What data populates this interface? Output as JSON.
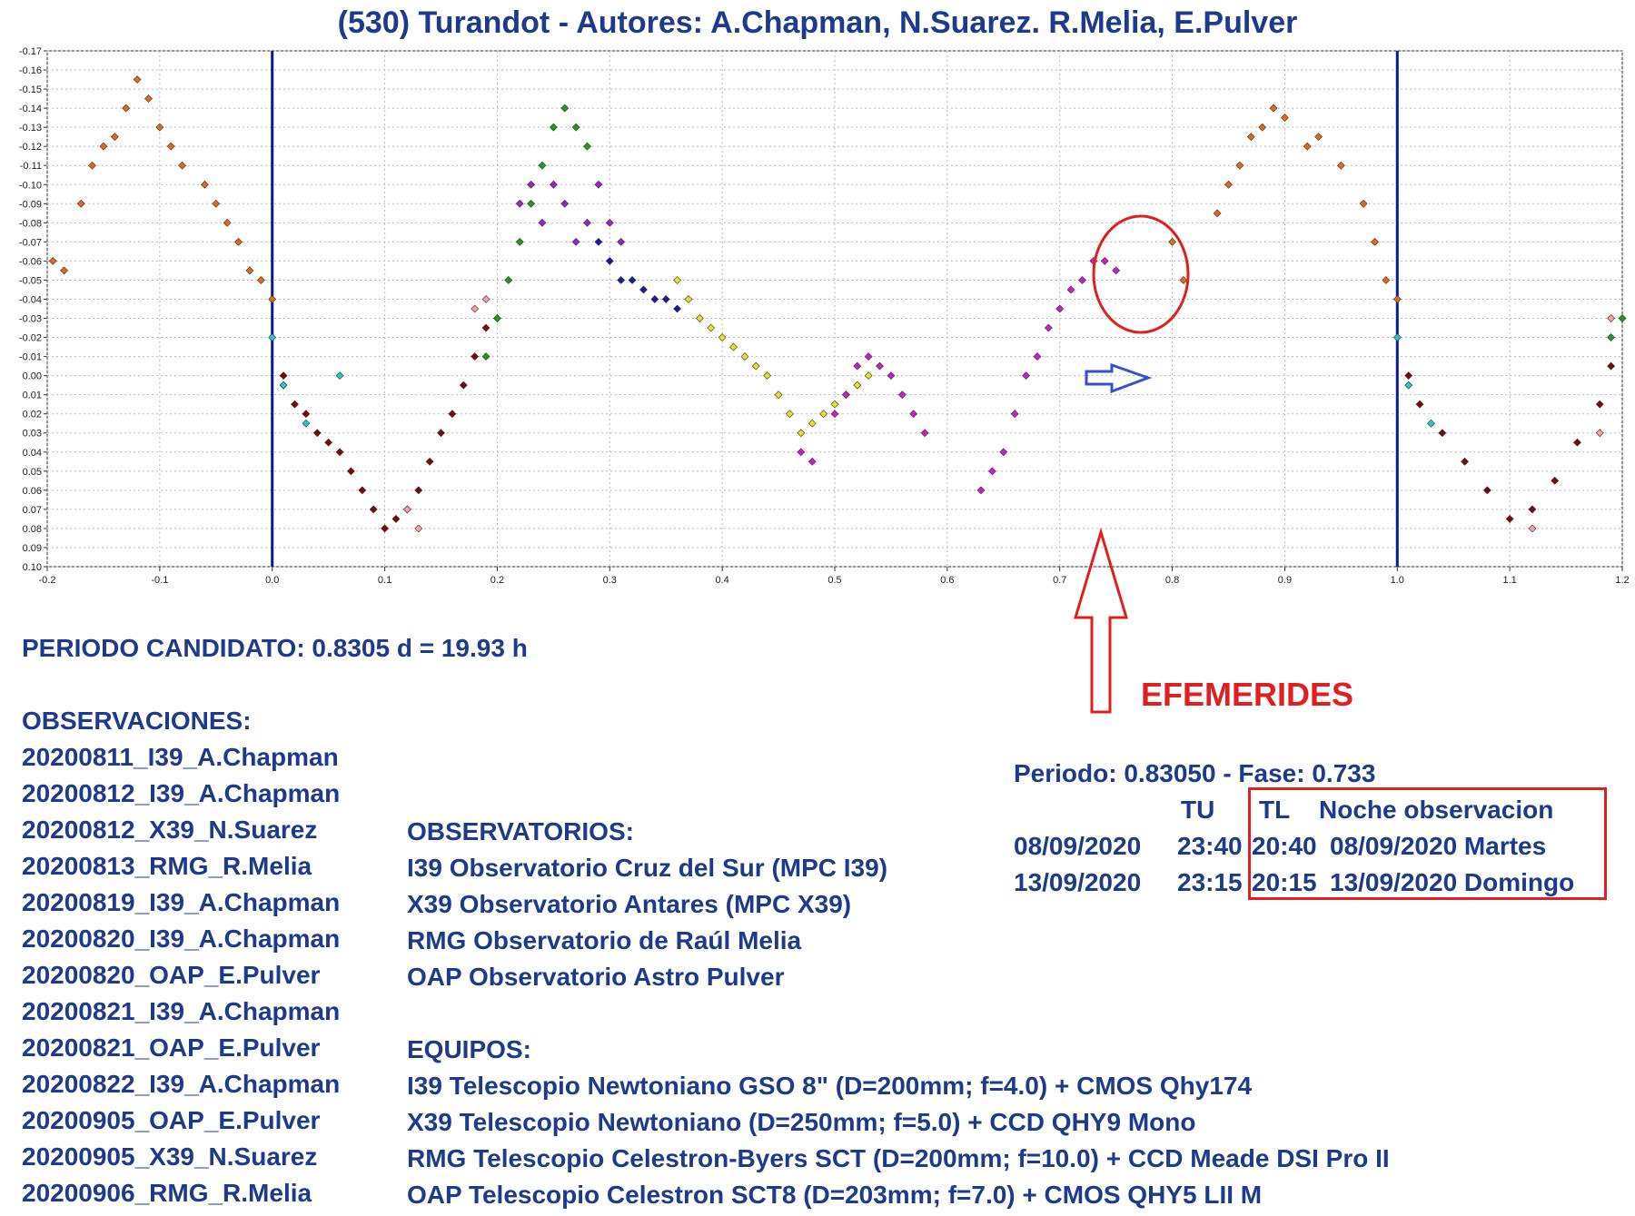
{
  "title": "(530) Turandot - Autores: A.Chapman, N.Suarez. R.Melia, E.Pulver",
  "period_text": "PERIODO CANDIDATO: 0.8305 d = 19.93 h",
  "observations": {
    "heading": "OBSERVACIONES:",
    "items": [
      "20200811_I39_A.Chapman",
      "20200812_I39_A.Chapman",
      "20200812_X39_N.Suarez",
      "20200813_RMG_R.Melia",
      "20200819_I39_A.Chapman",
      "20200820_I39_A.Chapman",
      "20200820_OAP_E.Pulver",
      "20200821_I39_A.Chapman",
      "20200821_OAP_E.Pulver",
      "20200822_I39_A.Chapman",
      "20200905_OAP_E.Pulver",
      "20200905_X39_N.Suarez",
      "20200906_RMG_R.Melia"
    ]
  },
  "observatories": {
    "heading": "OBSERVATORIOS:",
    "items": [
      "I39 Observatorio Cruz del Sur (MPC I39)",
      "X39 Observatorio Antares (MPC X39)",
      "RMG Observatorio de Raúl Melia",
      "OAP Observatorio Astro Pulver"
    ]
  },
  "equipment": {
    "heading": "EQUIPOS:",
    "items": [
      "I39 Telescopio Newtoniano GSO 8\" (D=200mm; f=4.0) + CMOS Qhy174",
      "X39 Telescopio Newtoniano (D=250mm; f=5.0) + CCD QHY9 Mono",
      "RMG Telescopio Celestron-Byers SCT (D=200mm; f=10.0) + CCD Meade DSI Pro II",
      "OAP Telescopio Celestron SCT8 (D=203mm; f=7.0) + CMOS QHY5 LII M"
    ]
  },
  "ephemeris": {
    "label": "EFEMERIDES",
    "period_phase": "Periodo: 0.83050 - Fase: 0.733",
    "col_tu": "TU",
    "col_tl": "TL",
    "col_night": "Noche observacion",
    "rows": [
      {
        "date": "08/09/2020",
        "tu": "23:40",
        "tl": "20:40",
        "night": "08/09/2020 Martes"
      },
      {
        "date": "13/09/2020",
        "tu": "23:15",
        "tl": "20:15",
        "night": "13/09/2020 Domingo"
      }
    ]
  },
  "colors": {
    "title": "#1f3a8a",
    "annotation": "#e02020",
    "arrow_right": "#3a4fd0",
    "phase_lines": "#0b1b8c"
  },
  "chart_data": {
    "type": "scatter",
    "title": "(530) Turandot - Autores: A.Chapman, N.Suarez. R.Melia, E.Pulver",
    "xlabel": "",
    "ylabel": "",
    "xlim": [
      -0.2,
      1.2
    ],
    "ylim": [
      -0.17,
      0.1
    ],
    "y_inverted": true,
    "grid": true,
    "x_ticks": [
      "-0.2",
      "-0.1",
      "0.0",
      "0.1",
      "0.2",
      "0.3",
      "0.4",
      "0.5",
      "0.6",
      "0.7",
      "0.8",
      "0.9",
      "1.0",
      "1.1",
      "1.2"
    ],
    "y_ticks": [
      "-0.17",
      "-0.16",
      "-0.15",
      "-0.14",
      "-0.13",
      "-0.12",
      "-0.11",
      "-0.10",
      "-0.09",
      "-0.08",
      "-0.07",
      "-0.06",
      "-0.05",
      "-0.04",
      "-0.03",
      "-0.02",
      "-0.01",
      "0.00",
      "0.01",
      "0.02",
      "0.03",
      "0.04",
      "0.05",
      "0.06",
      "0.07",
      "0.08",
      "0.09",
      "0.10"
    ],
    "vertical_lines": [
      0.0,
      1.0
    ],
    "series": [
      {
        "color": "#e06a1a",
        "points": [
          [
            -0.195,
            -0.06
          ],
          [
            -0.185,
            -0.055
          ],
          [
            -0.17,
            -0.09
          ],
          [
            -0.16,
            -0.11
          ],
          [
            -0.15,
            -0.12
          ],
          [
            -0.14,
            -0.125
          ],
          [
            -0.13,
            -0.14
          ],
          [
            -0.12,
            -0.155
          ],
          [
            -0.11,
            -0.145
          ],
          [
            -0.1,
            -0.13
          ],
          [
            -0.09,
            -0.12
          ],
          [
            -0.08,
            -0.11
          ],
          [
            -0.06,
            -0.1
          ],
          [
            -0.05,
            -0.09
          ],
          [
            -0.04,
            -0.08
          ],
          [
            -0.03,
            -0.07
          ],
          [
            -0.02,
            -0.055
          ],
          [
            -0.01,
            -0.05
          ],
          [
            0.0,
            -0.04
          ],
          [
            0.84,
            -0.085
          ],
          [
            0.85,
            -0.1
          ],
          [
            0.86,
            -0.11
          ],
          [
            0.87,
            -0.125
          ],
          [
            0.88,
            -0.13
          ],
          [
            0.89,
            -0.14
          ],
          [
            0.9,
            -0.135
          ],
          [
            0.92,
            -0.12
          ],
          [
            0.93,
            -0.125
          ],
          [
            0.95,
            -0.11
          ],
          [
            0.97,
            -0.09
          ],
          [
            0.98,
            -0.07
          ],
          [
            0.99,
            -0.05
          ],
          [
            1.0,
            -0.04
          ],
          [
            0.8,
            -0.07
          ],
          [
            0.81,
            -0.05
          ]
        ]
      },
      {
        "color": "#7a0a0a",
        "points": [
          [
            0.01,
            0.0
          ],
          [
            0.02,
            0.015
          ],
          [
            0.03,
            0.02
          ],
          [
            0.04,
            0.03
          ],
          [
            0.05,
            0.035
          ],
          [
            0.06,
            0.04
          ],
          [
            0.07,
            0.05
          ],
          [
            0.08,
            0.06
          ],
          [
            0.09,
            0.07
          ],
          [
            0.1,
            0.08
          ],
          [
            0.11,
            0.075
          ],
          [
            0.12,
            0.07
          ],
          [
            0.13,
            0.06
          ],
          [
            0.14,
            0.045
          ],
          [
            0.15,
            0.03
          ],
          [
            0.16,
            0.02
          ],
          [
            0.17,
            0.005
          ],
          [
            0.18,
            -0.01
          ],
          [
            0.19,
            -0.025
          ],
          [
            1.01,
            0.0
          ],
          [
            1.02,
            0.015
          ],
          [
            1.04,
            0.03
          ],
          [
            1.06,
            0.045
          ],
          [
            1.08,
            0.06
          ],
          [
            1.1,
            0.075
          ],
          [
            1.12,
            0.07
          ],
          [
            1.14,
            0.055
          ],
          [
            1.16,
            0.035
          ],
          [
            1.18,
            0.015
          ],
          [
            1.19,
            -0.005
          ]
        ]
      },
      {
        "color": "#1f9a1f",
        "points": [
          [
            0.19,
            -0.01
          ],
          [
            0.2,
            -0.03
          ],
          [
            0.21,
            -0.05
          ],
          [
            0.22,
            -0.07
          ],
          [
            0.23,
            -0.09
          ],
          [
            0.24,
            -0.11
          ],
          [
            0.25,
            -0.13
          ],
          [
            0.26,
            -0.14
          ],
          [
            0.27,
            -0.13
          ],
          [
            0.28,
            -0.12
          ],
          [
            1.19,
            -0.02
          ],
          [
            1.2,
            -0.03
          ]
        ]
      },
      {
        "color": "#9b22c8",
        "points": [
          [
            0.22,
            -0.09
          ],
          [
            0.23,
            -0.1
          ],
          [
            0.24,
            -0.08
          ],
          [
            0.25,
            -0.1
          ],
          [
            0.26,
            -0.09
          ],
          [
            0.27,
            -0.07
          ],
          [
            0.28,
            -0.08
          ],
          [
            0.29,
            -0.1
          ],
          [
            0.3,
            -0.08
          ],
          [
            0.31,
            -0.07
          ]
        ]
      },
      {
        "color": "#1a1aa0",
        "points": [
          [
            0.29,
            -0.07
          ],
          [
            0.3,
            -0.06
          ],
          [
            0.31,
            -0.05
          ],
          [
            0.32,
            -0.05
          ],
          [
            0.33,
            -0.045
          ],
          [
            0.34,
            -0.04
          ],
          [
            0.35,
            -0.04
          ],
          [
            0.36,
            -0.035
          ]
        ]
      },
      {
        "color": "#e8e020",
        "points": [
          [
            0.36,
            -0.05
          ],
          [
            0.37,
            -0.04
          ],
          [
            0.38,
            -0.03
          ],
          [
            0.39,
            -0.025
          ],
          [
            0.4,
            -0.02
          ],
          [
            0.41,
            -0.015
          ],
          [
            0.42,
            -0.01
          ],
          [
            0.43,
            -0.005
          ],
          [
            0.44,
            0.0
          ],
          [
            0.45,
            0.01
          ],
          [
            0.46,
            0.02
          ],
          [
            0.47,
            0.03
          ],
          [
            0.48,
            0.025
          ],
          [
            0.49,
            0.02
          ],
          [
            0.5,
            0.015
          ],
          [
            0.51,
            0.01
          ],
          [
            0.52,
            0.005
          ],
          [
            0.53,
            0.0
          ]
        ]
      },
      {
        "color": "#c81ec8",
        "points": [
          [
            0.47,
            0.04
          ],
          [
            0.48,
            0.045
          ],
          [
            0.5,
            0.02
          ],
          [
            0.51,
            0.01
          ],
          [
            0.52,
            -0.005
          ],
          [
            0.53,
            -0.01
          ],
          [
            0.54,
            -0.005
          ],
          [
            0.55,
            0.0
          ],
          [
            0.56,
            0.01
          ],
          [
            0.57,
            0.02
          ],
          [
            0.58,
            0.03
          ],
          [
            0.63,
            0.06
          ],
          [
            0.64,
            0.05
          ],
          [
            0.65,
            0.04
          ],
          [
            0.66,
            0.02
          ],
          [
            0.67,
            0.0
          ],
          [
            0.68,
            -0.01
          ],
          [
            0.69,
            -0.025
          ],
          [
            0.7,
            -0.035
          ],
          [
            0.71,
            -0.045
          ],
          [
            0.72,
            -0.05
          ],
          [
            0.73,
            -0.06
          ],
          [
            0.74,
            -0.06
          ],
          [
            0.75,
            -0.055
          ]
        ]
      },
      {
        "color": "#23c8c8",
        "points": [
          [
            0.0,
            -0.02
          ],
          [
            0.01,
            0.005
          ],
          [
            0.03,
            0.025
          ],
          [
            0.06,
            0.0
          ],
          [
            1.0,
            -0.02
          ],
          [
            1.01,
            0.005
          ],
          [
            1.03,
            0.025
          ]
        ]
      },
      {
        "color": "#f2a3a3",
        "points": [
          [
            0.12,
            0.07
          ],
          [
            0.13,
            0.08
          ],
          [
            0.18,
            -0.035
          ],
          [
            0.19,
            -0.04
          ],
          [
            1.12,
            0.08
          ],
          [
            1.18,
            0.03
          ],
          [
            1.19,
            -0.03
          ]
        ]
      }
    ]
  }
}
